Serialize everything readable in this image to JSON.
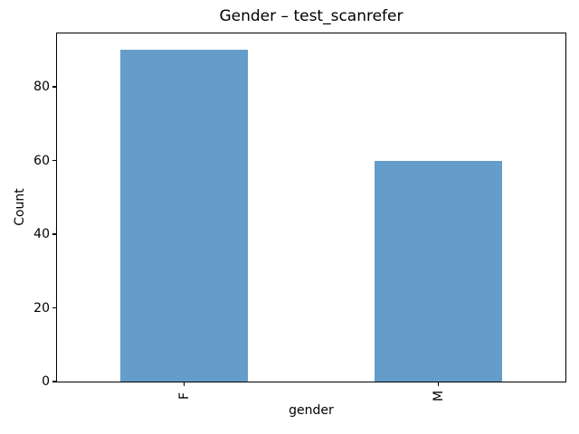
{
  "chart_data": {
    "type": "bar",
    "title": "Gender – test_scanrefer",
    "xlabel": "gender",
    "ylabel": "Count",
    "categories": [
      "F",
      "M"
    ],
    "values": [
      90,
      60
    ],
    "ylim": [
      0,
      94.5
    ],
    "yticks": [
      0,
      20,
      40,
      60,
      80
    ],
    "bar_color": "#649dca",
    "bar_width_fraction": 0.5,
    "xtick_rotation": 90,
    "grid": false,
    "legend": "none"
  }
}
